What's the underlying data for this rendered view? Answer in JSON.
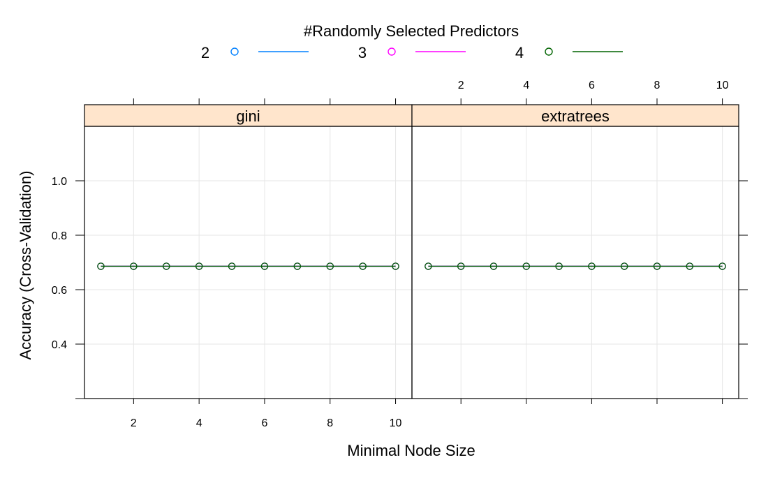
{
  "chart_data": {
    "type": "line",
    "title": "",
    "xlabel": "Minimal Node Size",
    "ylabel": "Accuracy (Cross-Validation)",
    "legend": {
      "title": "#Randomly Selected Predictors",
      "placement": "top",
      "entries": [
        {
          "label": "2",
          "color": "#0080ff"
        },
        {
          "label": "3",
          "color": "#ff00ff"
        },
        {
          "label": "4",
          "color": "#006400"
        }
      ]
    },
    "xlim": [
      0.5,
      10.5
    ],
    "ylim": [
      0.2,
      1.2
    ],
    "xticks": [
      2,
      4,
      6,
      8,
      10
    ],
    "yticks": [
      0.4,
      0.6,
      0.8,
      1.0
    ],
    "ytick_labels": [
      "0.4",
      "0.6",
      "0.8",
      "1.0"
    ],
    "grid": true,
    "strip_color": "#ffe5cc",
    "panels": [
      {
        "name": "gini",
        "x": [
          1,
          2,
          3,
          4,
          5,
          6,
          7,
          8,
          9,
          10
        ],
        "series": [
          {
            "name": "2",
            "values": [
              0.686,
              0.686,
              0.686,
              0.686,
              0.686,
              0.686,
              0.686,
              0.686,
              0.686,
              0.686
            ]
          },
          {
            "name": "3",
            "values": [
              0.686,
              0.686,
              0.686,
              0.686,
              0.686,
              0.686,
              0.686,
              0.686,
              0.686,
              0.686
            ]
          },
          {
            "name": "4",
            "values": [
              0.686,
              0.686,
              0.686,
              0.686,
              0.686,
              0.686,
              0.686,
              0.686,
              0.686,
              0.686
            ]
          }
        ]
      },
      {
        "name": "extratrees",
        "x": [
          1,
          2,
          3,
          4,
          5,
          6,
          7,
          8,
          9,
          10
        ],
        "series": [
          {
            "name": "2",
            "values": [
              0.686,
              0.686,
              0.686,
              0.686,
              0.686,
              0.686,
              0.686,
              0.686,
              0.686,
              0.686
            ]
          },
          {
            "name": "3",
            "values": [
              0.686,
              0.686,
              0.686,
              0.686,
              0.686,
              0.686,
              0.686,
              0.686,
              0.686,
              0.686
            ]
          },
          {
            "name": "4",
            "values": [
              0.686,
              0.686,
              0.686,
              0.686,
              0.686,
              0.686,
              0.686,
              0.686,
              0.686,
              0.686
            ]
          }
        ]
      }
    ]
  }
}
